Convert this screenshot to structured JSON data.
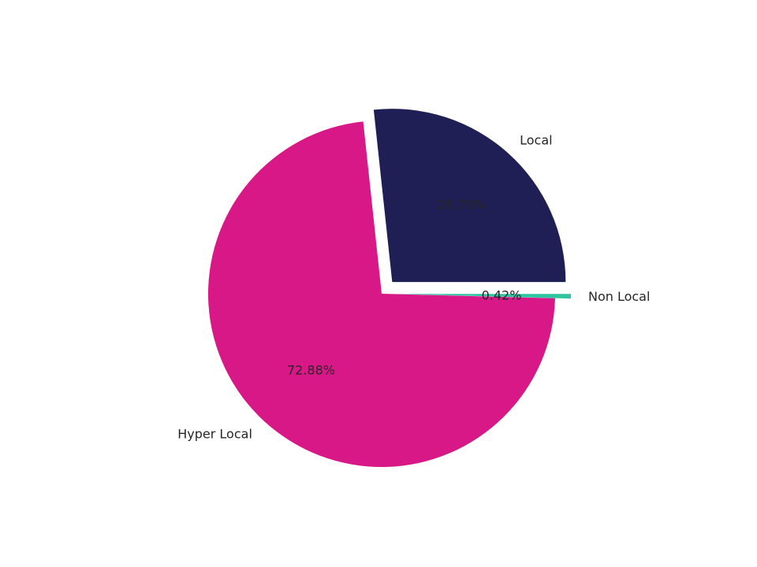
{
  "chart_data": {
    "type": "pie",
    "slices": [
      {
        "label": "Local",
        "value": 26.7,
        "pct_label": "26.70%",
        "color": "#1f1f55",
        "explode": true
      },
      {
        "label": "Hyper Local",
        "value": 72.88,
        "pct_label": "72.88%",
        "color": "#d81887",
        "explode": false
      },
      {
        "label": "Non Local",
        "value": 0.42,
        "pct_label": "0.42%",
        "color": "#2ec4a0",
        "explode": true
      }
    ],
    "start_angle_deg": 0,
    "direction": "counterclockwise",
    "label_color": "#262626",
    "legend": false
  }
}
